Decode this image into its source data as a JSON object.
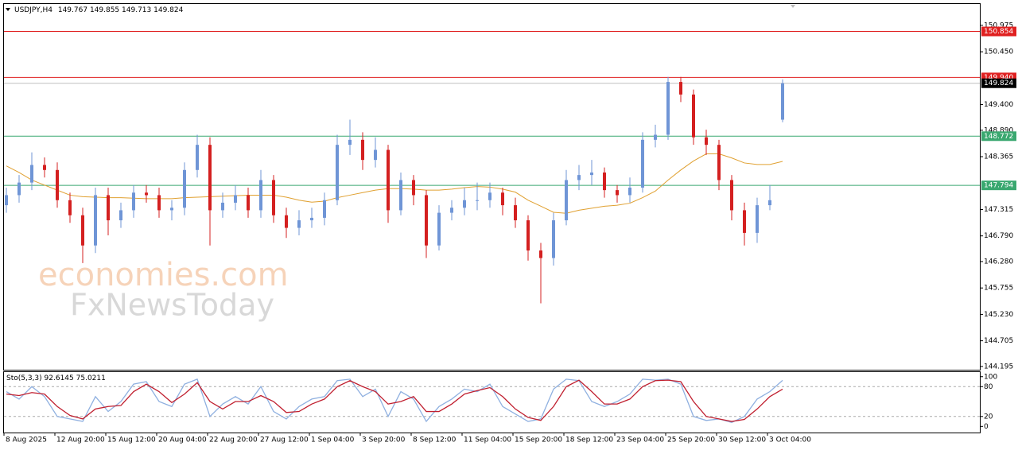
{
  "chart_data": [
    {
      "type": "candlestick",
      "title": "USDJPY,H4",
      "ohlc_header": [
        149.767,
        149.855,
        149.713,
        149.824
      ],
      "x": [
        "8 Aug 2025",
        null,
        null,
        null,
        "12 Aug 20:00",
        null,
        null,
        null,
        "15 Aug 12:00",
        null,
        null,
        null,
        "20 Aug 04:00",
        null,
        null,
        null,
        "22 Aug 20:00",
        null,
        null,
        null,
        "27 Aug 12:00",
        null,
        null,
        null,
        "1 Sep 04:00",
        null,
        null,
        null,
        "3 Sep 20:00",
        null,
        null,
        null,
        "8 Sep 12:00",
        null,
        null,
        null,
        "11 Sep 04:00",
        null,
        null,
        null,
        "15 Sep 20:00",
        null,
        null,
        null,
        "18 Sep 12:00",
        null,
        null,
        null,
        "23 Sep 04:00",
        null,
        null,
        null,
        "25 Sep 20:00",
        null,
        null,
        null,
        "30 Sep 12:00",
        null,
        null,
        null,
        "3 Oct 04:00",
        null
      ],
      "open": [
        147.4,
        147.6,
        147.85,
        148.2,
        148.1,
        147.5,
        147.2,
        146.6,
        147.6,
        147.1,
        147.3,
        147.65,
        147.6,
        147.3,
        147.35,
        148.1,
        148.6,
        147.3,
        147.45,
        147.6,
        147.3,
        147.9,
        147.2,
        146.95,
        147.1,
        147.15,
        147.5,
        148.6,
        148.7,
        148.3,
        148.5,
        147.3,
        147.9,
        147.6,
        146.6,
        147.25,
        147.35,
        147.5,
        147.5,
        147.65,
        147.4,
        147.1,
        146.5,
        146.35,
        147.1,
        147.9,
        148.0,
        148.05,
        147.7,
        147.6,
        147.75,
        148.7,
        148.8,
        149.85,
        149.6,
        148.75,
        148.6,
        147.9,
        147.3,
        146.85,
        147.4,
        149.1
      ],
      "high": [
        147.75,
        148.0,
        148.45,
        148.35,
        148.25,
        147.65,
        147.35,
        147.75,
        147.75,
        147.45,
        147.8,
        147.8,
        147.75,
        147.5,
        148.25,
        148.8,
        148.75,
        147.65,
        147.8,
        147.75,
        148.1,
        148.0,
        147.35,
        147.3,
        147.35,
        147.65,
        148.8,
        149.1,
        148.85,
        148.75,
        148.6,
        148.05,
        148.0,
        147.7,
        147.4,
        147.5,
        147.75,
        147.85,
        147.85,
        147.75,
        147.55,
        147.2,
        146.65,
        147.25,
        148.1,
        148.2,
        148.3,
        148.15,
        147.8,
        147.95,
        148.85,
        149.0,
        149.95,
        149.95,
        149.7,
        148.9,
        148.7,
        148.0,
        147.45,
        147.55,
        147.8,
        149.9
      ],
      "low": [
        147.25,
        147.45,
        147.7,
        147.95,
        147.35,
        147.05,
        146.25,
        146.45,
        146.8,
        146.95,
        147.15,
        147.45,
        147.15,
        147.1,
        147.2,
        147.95,
        146.6,
        147.15,
        147.3,
        147.15,
        147.15,
        147.05,
        146.75,
        146.8,
        146.95,
        147.0,
        147.4,
        148.4,
        148.1,
        148.15,
        147.05,
        147.2,
        147.4,
        146.35,
        146.5,
        147.1,
        147.2,
        147.3,
        147.35,
        147.2,
        146.95,
        146.3,
        145.45,
        146.2,
        147.0,
        147.7,
        147.8,
        147.55,
        147.45,
        147.45,
        147.65,
        148.55,
        148.7,
        149.45,
        148.6,
        148.4,
        147.7,
        147.1,
        146.6,
        146.65,
        147.3,
        149.05
      ],
      "close": [
        147.6,
        147.85,
        148.2,
        148.1,
        147.5,
        147.2,
        146.6,
        147.6,
        147.1,
        147.3,
        147.65,
        147.6,
        147.3,
        147.35,
        148.1,
        148.6,
        147.3,
        147.45,
        147.6,
        147.3,
        147.9,
        147.2,
        146.95,
        147.1,
        147.15,
        147.5,
        148.6,
        148.7,
        148.3,
        148.5,
        147.3,
        147.9,
        147.6,
        146.6,
        147.25,
        147.35,
        147.5,
        147.5,
        147.65,
        147.4,
        147.1,
        146.5,
        146.35,
        147.1,
        147.9,
        148.0,
        148.05,
        147.7,
        147.6,
        147.75,
        148.7,
        148.8,
        149.85,
        149.6,
        148.75,
        148.6,
        147.9,
        147.3,
        146.85,
        147.4,
        147.5,
        149.824
      ],
      "up_color": "#6f95d6",
      "down_color": "#d42020",
      "overlays": [
        {
          "color": "#e0a030",
          "values": [
            148.18,
            148.05,
            147.9,
            147.8,
            147.7,
            147.6,
            147.57,
            147.56,
            147.55,
            147.55,
            147.54,
            147.53,
            147.53,
            147.53,
            147.55,
            147.56,
            147.57,
            147.58,
            147.59,
            147.6,
            147.6,
            147.6,
            147.56,
            147.5,
            147.46,
            147.48,
            147.55,
            147.6,
            147.65,
            147.7,
            147.73,
            147.73,
            147.72,
            147.7,
            147.7,
            147.72,
            147.75,
            147.77,
            147.76,
            147.72,
            147.66,
            147.5,
            147.38,
            147.26,
            147.24,
            147.3,
            147.34,
            147.38,
            147.4,
            147.44,
            147.55,
            147.68,
            147.9,
            148.1,
            148.28,
            148.42,
            148.42,
            148.34,
            148.24,
            148.21,
            148.21,
            148.27
          ]
        }
      ],
      "levels": [
        {
          "value": 150.854,
          "color": "#e02020"
        },
        {
          "value": {
            "value": 149.94,
            "label": "149.940"
          },
          "color": "#e02020"
        },
        {
          "value": 148.772,
          "color": "#3aa870"
        },
        {
          "value": 147.794,
          "color": "#3aa870"
        }
      ],
      "current_price": 149.824,
      "ylim": [
        144.13,
        151.4
      ],
      "yticks": [
        150.975,
        {
          "value": 150.45,
          "label": "150.450"
        },
        {
          "value": 149.4,
          "label": "149.400"
        },
        {
          "value": 148.89,
          "label": "148.890"
        },
        148.365,
        147.315,
        {
          "value": 146.79,
          "label": "146.790"
        },
        {
          "value": 146.28,
          "label": "146.280"
        },
        145.755,
        {
          "value": 145.23,
          "label": "145.230"
        },
        144.705,
        144.195
      ]
    },
    {
      "type": "line",
      "title": "Sto(5,3,3)",
      "values_header": [
        92.6145,
        75.0211
      ],
      "series": [
        {
          "color": "#8fb0e0",
          "values": [
            70,
            55,
            80,
            60,
            20,
            15,
            10,
            60,
            30,
            50,
            85,
            90,
            50,
            40,
            85,
            95,
            20,
            45,
            60,
            45,
            80,
            30,
            15,
            40,
            55,
            60,
            92,
            95,
            60,
            75,
            20,
            70,
            55,
            10,
            40,
            55,
            75,
            70,
            85,
            40,
            25,
            10,
            15,
            75,
            95,
            92,
            50,
            40,
            50,
            65,
            95,
            93,
            95,
            85,
            20,
            12,
            15,
            8,
            20,
            55,
            70,
            92.6145
          ]
        },
        {
          "color": "#c02030",
          "values": [
            65,
            62,
            68,
            65,
            40,
            22,
            15,
            35,
            40,
            42,
            70,
            85,
            70,
            48,
            65,
            88,
            50,
            35,
            50,
            50,
            62,
            50,
            28,
            30,
            45,
            55,
            80,
            92,
            80,
            70,
            45,
            50,
            60,
            30,
            30,
            45,
            65,
            72,
            78,
            60,
            35,
            18,
            12,
            40,
            80,
            93,
            70,
            45,
            45,
            55,
            80,
            92,
            93,
            90,
            50,
            20,
            15,
            10,
            14,
            35,
            60,
            75.0211
          ]
        }
      ],
      "ylim": [
        -12.3,
        109.2
      ],
      "yticks": [
        100,
        80,
        20,
        0
      ],
      "grid_levels": [
        80,
        20
      ]
    }
  ],
  "watermark": [
    "economies.com",
    "FxNewsToday"
  ]
}
